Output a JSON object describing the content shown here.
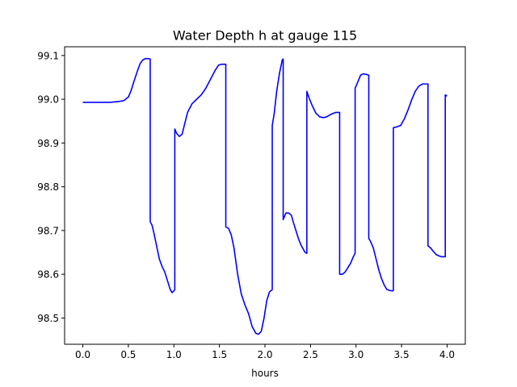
{
  "chart_data": {
    "type": "line",
    "title": "Water Depth h at gauge 115",
    "xlabel": "hours",
    "ylabel": "",
    "xlim": [
      -0.2,
      4.2
    ],
    "ylim": [
      98.44,
      99.12
    ],
    "xticks": [
      0.0,
      0.5,
      1.0,
      1.5,
      2.0,
      2.5,
      3.0,
      3.5,
      4.0
    ],
    "xtick_labels": [
      "0.0",
      "0.5",
      "1.0",
      "1.5",
      "2.0",
      "2.5",
      "3.0",
      "3.5",
      "4.0"
    ],
    "yticks": [
      98.5,
      98.6,
      98.7,
      98.8,
      98.9,
      99.0,
      99.1
    ],
    "ytick_labels": [
      "98.5",
      "98.6",
      "98.7",
      "98.8",
      "98.9",
      "99.0",
      "99.1"
    ],
    "grid": false,
    "series": [
      {
        "color": "#0000ff",
        "x": [
          0.0,
          0.1,
          0.2,
          0.3,
          0.4,
          0.45,
          0.5,
          0.53,
          0.56,
          0.6,
          0.63,
          0.66,
          0.69,
          0.72,
          0.74,
          0.74,
          0.76,
          0.78,
          0.81,
          0.84,
          0.87,
          0.9,
          0.93,
          0.96,
          0.98,
          1.0,
          1.01,
          1.01,
          1.03,
          1.06,
          1.09,
          1.12,
          1.15,
          1.2,
          1.25,
          1.3,
          1.35,
          1.4,
          1.45,
          1.49,
          1.52,
          1.55,
          1.57,
          1.57,
          1.6,
          1.63,
          1.66,
          1.7,
          1.74,
          1.78,
          1.82,
          1.86,
          1.9,
          1.93,
          1.96,
          1.99,
          2.02,
          2.05,
          2.07,
          2.08,
          2.08,
          2.1,
          2.13,
          2.16,
          2.19,
          2.2,
          2.2,
          2.23,
          2.26,
          2.29,
          2.31,
          2.34,
          2.37,
          2.4,
          2.44,
          2.46,
          2.46,
          2.49,
          2.52,
          2.56,
          2.6,
          2.64,
          2.68,
          2.72,
          2.75,
          2.78,
          2.81,
          2.82,
          2.82,
          2.85,
          2.88,
          2.91,
          2.94,
          2.97,
          2.99,
          2.99,
          3.02,
          3.05,
          3.08,
          3.11,
          3.14,
          3.14,
          3.16,
          3.19,
          3.22,
          3.25,
          3.28,
          3.31,
          3.34,
          3.37,
          3.4,
          3.41,
          3.41,
          3.45,
          3.49,
          3.53,
          3.57,
          3.61,
          3.65,
          3.69,
          3.73,
          3.77,
          3.79,
          3.79,
          3.82,
          3.85,
          3.88,
          3.91,
          3.94,
          3.97,
          3.98,
          3.98,
          4.0
        ],
        "y": [
          98.993,
          98.993,
          98.993,
          98.993,
          98.995,
          98.997,
          99.005,
          99.02,
          99.04,
          99.065,
          99.082,
          99.09,
          99.093,
          99.093,
          99.092,
          98.72,
          98.712,
          98.695,
          98.665,
          98.635,
          98.618,
          98.605,
          98.585,
          98.565,
          98.558,
          98.562,
          98.565,
          98.932,
          98.922,
          98.915,
          98.92,
          98.945,
          98.97,
          98.99,
          99.0,
          99.01,
          99.025,
          99.045,
          99.065,
          99.078,
          99.08,
          99.08,
          99.08,
          98.708,
          98.705,
          98.69,
          98.66,
          98.6,
          98.555,
          98.53,
          98.51,
          98.48,
          98.465,
          98.463,
          98.47,
          98.5,
          98.54,
          98.56,
          98.563,
          98.565,
          98.94,
          98.965,
          99.02,
          99.06,
          99.09,
          99.092,
          98.725,
          98.74,
          98.74,
          98.735,
          98.72,
          98.7,
          98.68,
          98.665,
          98.65,
          98.648,
          99.018,
          99.0,
          98.985,
          98.968,
          98.96,
          98.958,
          98.96,
          98.965,
          98.968,
          98.97,
          98.97,
          98.97,
          98.6,
          98.6,
          98.605,
          98.615,
          98.625,
          98.64,
          98.648,
          99.025,
          99.04,
          99.055,
          99.058,
          99.057,
          99.055,
          98.682,
          98.675,
          98.66,
          98.635,
          98.61,
          98.59,
          98.575,
          98.565,
          98.563,
          98.562,
          98.563,
          98.935,
          98.937,
          98.94,
          98.955,
          98.975,
          98.998,
          99.018,
          99.03,
          99.035,
          99.035,
          99.035,
          98.665,
          98.66,
          98.652,
          98.645,
          98.642,
          98.64,
          98.64,
          98.64,
          99.01,
          99.007
        ]
      }
    ]
  }
}
